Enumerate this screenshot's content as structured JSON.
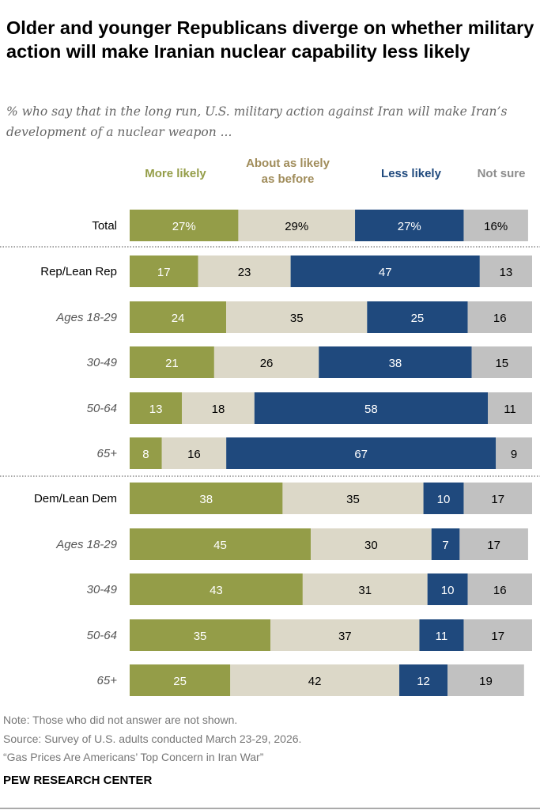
{
  "title": "Older and younger Republicans diverge on whether military action will make Iranian nuclear capability less likely",
  "subtitle": "% who say that in the long run, U.S. military action against Iran will make Iran’s development of a nuclear weapon ...",
  "notes": [
    "Note: Those who did not answer are not shown.",
    "Source: Survey of U.S. adults conducted March 23-29, 2026.",
    "“Gas Prices Are Americans’ Top Concern in Iran War”"
  ],
  "brand": "PEW RESEARCH CENTER",
  "chart_data": {
    "type": "bar",
    "orientation": "horizontal",
    "stacked": true,
    "legend_placement": "top",
    "xlim": [
      0,
      100
    ],
    "categories": [
      "Total",
      "Rep/Lean Rep",
      "Ages 18-29",
      "30-49",
      "50-64",
      "65+",
      "Dem/Lean Dem",
      "Ages 18-29",
      "30-49",
      "50-64",
      "65+"
    ],
    "italic_categories": [
      false,
      false,
      true,
      true,
      true,
      true,
      false,
      true,
      true,
      true,
      true
    ],
    "series": [
      {
        "name": "More likely",
        "color": "#949d48",
        "label_color": "#949d48",
        "text_color": "#ffffff",
        "values": [
          27,
          17,
          24,
          21,
          13,
          8,
          38,
          45,
          43,
          35,
          25
        ]
      },
      {
        "name": "About as likely as before",
        "name_lines": [
          "About as likely",
          "as before"
        ],
        "color": "#dcd8c8",
        "label_color": "#a08c5a",
        "text_color": "#000000",
        "values": [
          29,
          23,
          35,
          26,
          18,
          16,
          35,
          30,
          31,
          37,
          42
        ]
      },
      {
        "name": "Less likely",
        "color": "#1f497d",
        "label_color": "#1f497d",
        "text_color": "#ffffff",
        "values": [
          27,
          47,
          25,
          38,
          58,
          67,
          10,
          7,
          10,
          11,
          12
        ]
      },
      {
        "name": "Not sure",
        "color": "#c1c1c1",
        "label_color": "#8c8c8c",
        "text_color": "#000000",
        "values": [
          16,
          13,
          16,
          15,
          11,
          9,
          17,
          17,
          16,
          17,
          19
        ]
      }
    ],
    "value_labels": [
      [
        "27%",
        "29%",
        "27%",
        "16%"
      ]
    ]
  }
}
